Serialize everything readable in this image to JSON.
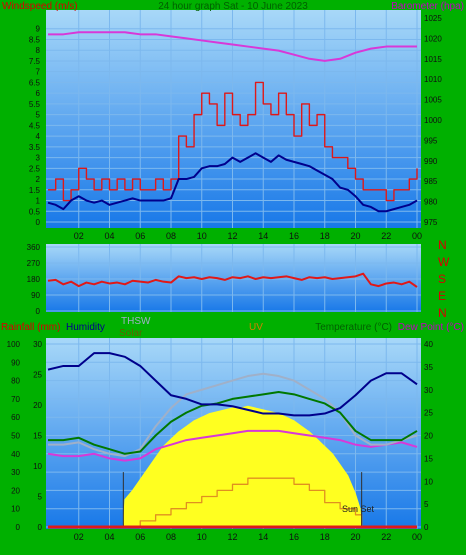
{
  "colors": {
    "background": "#00b000",
    "plot_bg_top": "#a8d8f8",
    "plot_bg_bottom": "#1878e8",
    "grid": "#7cb8ee",
    "wind_speed": "#e01818",
    "wind_avg": "#00008c",
    "barometer": "#d838d8",
    "wind_dir": "#e01818",
    "humidity": "#00008c",
    "temperature": "#007800",
    "thsw": "#a0b0c8",
    "dew_point": "#d838d8",
    "solar": "#ffff20",
    "uv": "#e09020",
    "rain": "#e01818",
    "label_red": "#d80000",
    "label_magenta": "#c000c0",
    "label_navy": "#00008c",
    "label_green": "#006000",
    "label_grey": "#a0b0c8",
    "label_olive": "#606000",
    "label_orange": "#d08000"
  },
  "texts": {
    "top_title": "24 hour graph Sat - 10 June 2023",
    "wind_ylabel": "Windspeed (m/s)",
    "baro_ylabel": "Barometer (hpa)",
    "rain_label": "Rainfall (mm)",
    "humidity_label": "Humidity",
    "thsw_label": "THSW",
    "solar_label": "Solar",
    "uv_label": "UV",
    "temp_label": "Temperature (°C)",
    "dew_label": "Dew Point (°C)",
    "sunset_label": "Sun Set",
    "compass": [
      "N",
      "W",
      "S",
      "E",
      "N"
    ]
  },
  "chart_data": [
    {
      "type": "line",
      "title": "24 hour graph Sat - 10 June 2023",
      "xlabel": "",
      "ylabel": "Windspeed (m/s)",
      "ylabel_right": "Barometer (hpa)",
      "x_ticks": [
        "02",
        "04",
        "06",
        "08",
        "10",
        "12",
        "14",
        "16",
        "18",
        "20",
        "22",
        "00"
      ],
      "x_range_hours": [
        0,
        24
      ],
      "ylim": [
        0,
        9.5
      ],
      "y_ticks": [
        0,
        0.5,
        1,
        1.5,
        2,
        2.5,
        3,
        3.5,
        4,
        4.5,
        5,
        5.5,
        6,
        6.5,
        7,
        7.5,
        8,
        8.5,
        9
      ],
      "ylim_right": [
        975,
        1025
      ],
      "y_ticks_right": [
        975,
        980,
        985,
        990,
        995,
        1000,
        1005,
        1010,
        1015,
        1020,
        1025
      ],
      "series": [
        {
          "name": "Windspeed",
          "axis": "left",
          "x": [
            0,
            0.5,
            1,
            1.5,
            2,
            2.5,
            3,
            3.5,
            4,
            4.5,
            5,
            5.5,
            6,
            6.5,
            7,
            7.5,
            8,
            8.5,
            9,
            9.5,
            10,
            10.5,
            11,
            11.5,
            12,
            12.5,
            13,
            13.5,
            14,
            14.5,
            15,
            15.5,
            16,
            16.5,
            17,
            17.5,
            18,
            18.5,
            19,
            19.5,
            20,
            20.5,
            21,
            21.5,
            22,
            22.5,
            23,
            23.5,
            24
          ],
          "values": [
            1.5,
            2,
            1,
            1.5,
            2.5,
            2,
            1.5,
            2,
            1.5,
            2,
            1.5,
            2,
            1.5,
            1.5,
            2,
            1.5,
            2,
            4,
            3.5,
            5,
            6,
            5.5,
            4.5,
            6,
            5,
            4.5,
            5,
            6.5,
            5.5,
            5,
            6,
            5,
            4,
            5.5,
            4.5,
            5,
            3.5,
            3,
            3,
            2.5,
            2,
            1.5,
            1.5,
            1.5,
            1,
            1.5,
            1.5,
            2,
            2.5
          ]
        },
        {
          "name": "Wind average",
          "axis": "left",
          "x": [
            0,
            0.5,
            1,
            1.5,
            2,
            2.5,
            3,
            3.5,
            4,
            4.5,
            5,
            5.5,
            6,
            6.5,
            7,
            7.5,
            8,
            8.5,
            9,
            9.5,
            10,
            10.5,
            11,
            11.5,
            12,
            12.5,
            13,
            13.5,
            14,
            14.5,
            15,
            15.5,
            16,
            16.5,
            17,
            17.5,
            18,
            18.5,
            19,
            19.5,
            20,
            20.5,
            21,
            21.5,
            22,
            22.5,
            23,
            23.5,
            24
          ],
          "values": [
            0.9,
            0.8,
            0.6,
            1,
            1.2,
            1,
            0.9,
            1,
            0.8,
            0.9,
            1,
            1.1,
            1,
            1,
            1,
            1,
            1.1,
            2,
            2,
            2.1,
            2.5,
            2.6,
            2.6,
            2.7,
            3,
            2.8,
            3,
            3.2,
            3,
            2.8,
            3.1,
            2.9,
            2.8,
            2.7,
            2.6,
            2.4,
            2.2,
            2,
            1.6,
            1.5,
            1.2,
            0.8,
            0.7,
            0.5,
            0.5,
            0.6,
            0.7,
            0.8,
            1
          ]
        },
        {
          "name": "Barometer",
          "axis": "right",
          "x": [
            0,
            1,
            2,
            3,
            4,
            5,
            6,
            7,
            8,
            9,
            10,
            11,
            12,
            13,
            14,
            15,
            16,
            17,
            18,
            19,
            20,
            21,
            22,
            23,
            24
          ],
          "values": [
            1021,
            1021,
            1021.5,
            1021.5,
            1021.5,
            1021.5,
            1021,
            1021,
            1020.5,
            1020,
            1019.5,
            1019,
            1018.5,
            1018,
            1017.5,
            1017,
            1016,
            1015,
            1014.5,
            1015,
            1016.5,
            1017.5,
            1018,
            1018,
            1018
          ]
        }
      ]
    },
    {
      "type": "line",
      "title": "",
      "xlabel": "",
      "ylabel": "",
      "ylim": [
        0,
        360
      ],
      "y_ticks": [
        0,
        90,
        180,
        270,
        360
      ],
      "series": [
        {
          "name": "",
          "x": [
            0,
            0.5,
            1,
            1.5,
            2,
            2.5,
            3,
            3.5,
            4,
            4.5,
            5,
            5.5,
            6,
            6.5,
            7,
            7.5,
            8,
            8.5,
            9,
            9.5,
            10,
            10.5,
            11,
            11.5,
            12,
            12.5,
            13,
            13.5,
            14,
            14.5,
            15,
            15.5,
            16,
            16.5,
            17,
            17.5,
            18,
            18.5,
            19,
            19.5,
            20,
            20.5,
            21,
            21.5,
            22,
            22.5,
            23,
            23.5,
            24
          ],
          "values": [
            170,
            175,
            150,
            165,
            140,
            160,
            150,
            165,
            155,
            160,
            150,
            170,
            165,
            160,
            175,
            165,
            160,
            195,
            185,
            190,
            180,
            190,
            185,
            175,
            190,
            185,
            195,
            180,
            190,
            185,
            190,
            195,
            185,
            175,
            190,
            185,
            190,
            180,
            185,
            190,
            195,
            210,
            150,
            140,
            155,
            160,
            150,
            165,
            135
          ]
        }
      ]
    },
    {
      "type": "line",
      "title": "",
      "xlabel": "",
      "ylabel": "Rainfall (mm)",
      "ylabel_right": "Temperature (°C)",
      "ylim": [
        0,
        100
      ],
      "y_ticks": [
        0,
        10,
        20,
        30,
        40,
        50,
        60,
        70,
        80,
        90,
        100
      ],
      "ylim_middle": [
        0,
        30
      ],
      "y_ticks_middle": [
        0,
        5,
        10,
        15,
        20,
        25,
        30
      ],
      "ylim_right": [
        0,
        40
      ],
      "y_ticks_right": [
        0,
        5,
        10,
        15,
        20,
        25,
        30,
        35,
        40
      ],
      "sunrise_hour": 4.9,
      "sunset_hour": 20.4,
      "series": [
        {
          "name": "Humidity",
          "axis": "left",
          "x": [
            0,
            1,
            2,
            3,
            4,
            5,
            6,
            7,
            8,
            9,
            10,
            11,
            12,
            13,
            14,
            15,
            16,
            17,
            18,
            19,
            20,
            21,
            22,
            23,
            24
          ],
          "values": [
            86,
            88,
            88,
            95,
            95,
            93,
            88,
            80,
            72,
            70,
            67,
            67,
            66,
            64,
            62,
            62,
            61,
            61,
            62,
            65,
            72,
            80,
            84,
            84,
            78
          ]
        },
        {
          "name": "Temperature (°C)",
          "axis": "right",
          "x": [
            0,
            1,
            2,
            3,
            4,
            5,
            6,
            7,
            8,
            9,
            10,
            11,
            12,
            13,
            14,
            15,
            16,
            17,
            18,
            19,
            20,
            21,
            22,
            23,
            24
          ],
          "values": [
            19,
            19,
            19.5,
            18,
            17,
            16,
            16.5,
            20,
            23,
            25,
            26.5,
            27,
            28,
            28.5,
            29,
            29.5,
            29,
            28,
            27,
            25,
            21,
            19,
            19,
            19,
            21
          ]
        },
        {
          "name": "THSW",
          "axis": "right",
          "x": [
            0,
            1,
            2,
            3,
            4,
            5,
            6,
            7,
            8,
            9,
            10,
            11,
            12,
            13,
            14,
            15,
            16,
            17,
            18,
            19,
            20,
            21,
            22,
            23,
            24
          ],
          "values": [
            18,
            18,
            18.5,
            17,
            16,
            15.5,
            17,
            22,
            26,
            29,
            30,
            31,
            32,
            33,
            33.5,
            33,
            32,
            30,
            28,
            25,
            20,
            18,
            18,
            19,
            20
          ]
        },
        {
          "name": "Dew Point (°C)",
          "axis": "right",
          "x": [
            0,
            1,
            2,
            3,
            4,
            5,
            6,
            7,
            8,
            9,
            10,
            11,
            12,
            13,
            14,
            15,
            16,
            17,
            18,
            19,
            20,
            21,
            22,
            23,
            24
          ],
          "values": [
            16,
            15.5,
            15.5,
            16,
            15,
            14.5,
            15,
            17,
            18,
            19,
            19.5,
            20,
            20.5,
            21,
            21,
            21,
            20.5,
            20,
            19.5,
            19,
            18,
            17.5,
            18,
            18.5,
            17.5
          ]
        },
        {
          "name": "Solar",
          "axis": "left",
          "x": [
            0,
            4.9,
            5,
            5.5,
            6,
            6.5,
            7,
            7.5,
            8,
            8.5,
            9,
            9.5,
            10,
            10.5,
            11,
            11.5,
            12,
            12.5,
            13,
            13.5,
            14,
            14.5,
            15,
            15.5,
            16,
            16.5,
            17,
            17.5,
            18,
            18.5,
            19,
            19.5,
            20,
            20.3,
            20.4,
            24
          ],
          "values": [
            0,
            0,
            15,
            20,
            26,
            32,
            38,
            44,
            48,
            52,
            55,
            58,
            60,
            62,
            63,
            64,
            65,
            65,
            66,
            65,
            64,
            63,
            62,
            60,
            58,
            55,
            52,
            48,
            44,
            40,
            34,
            28,
            18,
            10,
            0,
            0
          ]
        },
        {
          "name": "UV",
          "axis": "middle",
          "x": [
            0,
            5,
            6,
            7,
            8,
            9,
            10,
            11,
            12,
            13,
            14,
            15,
            16,
            17,
            18,
            19,
            20,
            20.4,
            24
          ],
          "values": [
            0,
            0,
            1,
            2,
            3,
            4,
            5,
            6,
            7,
            8,
            8,
            8,
            7,
            6,
            4,
            3,
            2,
            0,
            0
          ]
        },
        {
          "name": "Rainfall (mm)",
          "axis": "left",
          "x": [
            0,
            24
          ],
          "values": [
            0,
            0
          ]
        }
      ]
    }
  ]
}
